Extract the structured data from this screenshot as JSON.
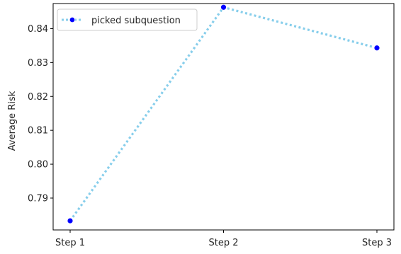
{
  "chart_data": {
    "type": "line",
    "x": [
      "Step 1",
      "Step 2",
      "Step 3"
    ],
    "series": [
      {
        "name": "picked subquestion",
        "values": [
          0.7833,
          0.8463,
          0.8343
        ],
        "line_color": "#87ceeb",
        "marker_color": "#0000ff",
        "line_style": "dotted"
      }
    ],
    "xlabel": "",
    "ylabel": "Average Risk",
    "ylim": [
      0.7806,
      0.8474
    ],
    "yticks": [
      "0.79",
      "0.80",
      "0.81",
      "0.82",
      "0.83",
      "0.84"
    ],
    "grid": false,
    "legend_position": "top-left"
  }
}
